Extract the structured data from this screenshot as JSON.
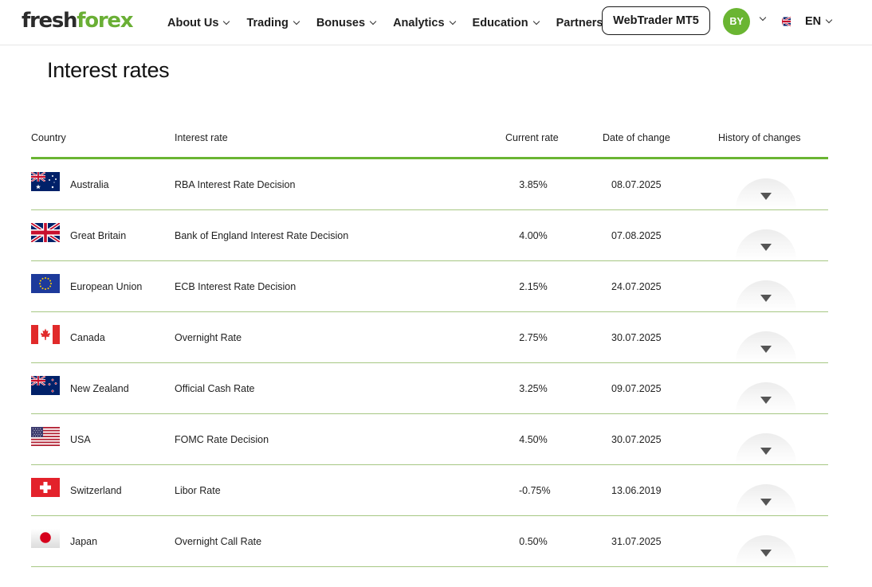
{
  "header": {
    "logo": {
      "part1": "fresh",
      "part2": "forex"
    },
    "nav": [
      {
        "label": "About Us",
        "dropdown": true
      },
      {
        "label": "Trading",
        "dropdown": true
      },
      {
        "label": "Bonuses",
        "dropdown": true
      },
      {
        "label": "Analytics",
        "dropdown": true
      },
      {
        "label": "Education",
        "dropdown": true
      },
      {
        "label": "Partners",
        "dropdown": false
      }
    ],
    "webtrader_label": "WebTrader MT5",
    "avatar_initials": "BY",
    "language": "EN"
  },
  "page": {
    "title": "Interest rates"
  },
  "table": {
    "columns": {
      "country": "Country",
      "interest_rate": "Interest rate",
      "current_rate": "Current rate",
      "date_of_change": "Date of change",
      "history": "History of changes"
    },
    "rows": [
      {
        "flag": "australia-flag",
        "country": "Australia",
        "rate_name": "RBA Interest Rate Decision",
        "rate": "3.85%",
        "date": "08.07.2025"
      },
      {
        "flag": "great-britain-flag",
        "country": "Great Britain",
        "rate_name": "Bank of England Interest Rate Decision",
        "rate": "4.00%",
        "date": "07.08.2025"
      },
      {
        "flag": "european-union-flag",
        "country": "European Union",
        "rate_name": "ECB Interest Rate Decision",
        "rate": "2.15%",
        "date": "24.07.2025"
      },
      {
        "flag": "canada-flag",
        "country": "Canada",
        "rate_name": "Overnight Rate",
        "rate": "2.75%",
        "date": "30.07.2025"
      },
      {
        "flag": "new-zealand-flag",
        "country": "New Zealand",
        "rate_name": "Official Cash Rate",
        "rate": "3.25%",
        "date": "09.07.2025"
      },
      {
        "flag": "usa-flag",
        "country": "USA",
        "rate_name": "FOMC Rate Decision",
        "rate": "4.50%",
        "date": "30.07.2025"
      },
      {
        "flag": "switzerland-flag",
        "country": "Switzerland",
        "rate_name": "Libor Rate",
        "rate": "-0.75%",
        "date": "13.06.2019"
      },
      {
        "flag": "japan-flag",
        "country": "Japan",
        "rate_name": "Overnight Call Rate",
        "rate": "0.50%",
        "date": "31.07.2025"
      }
    ]
  },
  "colors": {
    "brand_green": "#6ab532",
    "divider_green": "#a6c783",
    "logo_dark": "#2b2b2b"
  }
}
